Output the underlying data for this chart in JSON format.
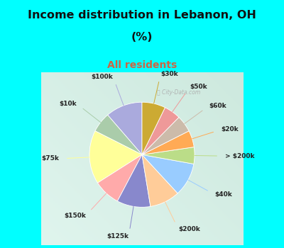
{
  "title_line1": "Income distribution in Lebanon, OH",
  "title_line2": "(%)",
  "subtitle": "All residents",
  "title_color": "#111111",
  "subtitle_color": "#cc6644",
  "bg_color": "#00ffff",
  "chart_bg_tl": "#e0f5ee",
  "chart_bg_br": "#cce8dd",
  "labels": [
    "$100k",
    "$10k",
    "$75k",
    "$150k",
    "$125k",
    "$200k",
    "$40k",
    "> $200k",
    "$20k",
    "$60k",
    "$50k",
    "$30k"
  ],
  "values": [
    11,
    6,
    16,
    8,
    10,
    9,
    10,
    5,
    5,
    5,
    5,
    7
  ],
  "colors": [
    "#aaaadd",
    "#aaccaa",
    "#ffff99",
    "#ffaaaa",
    "#8888cc",
    "#ffcc99",
    "#99ccff",
    "#bbdd88",
    "#ffaa55",
    "#ccbbaa",
    "#ee9999",
    "#ccaa33"
  ],
  "start_angle": 90,
  "label_line_colors": [
    "#aaaadd",
    "#aaccaa",
    "#ffff99",
    "#ffaaaa",
    "#8888cc",
    "#ffcc99",
    "#99ccff",
    "#bbdd88",
    "#ffaa55",
    "#ccbbaa",
    "#ee9999",
    "#ccaa33"
  ],
  "watermark": "City-Data.com"
}
